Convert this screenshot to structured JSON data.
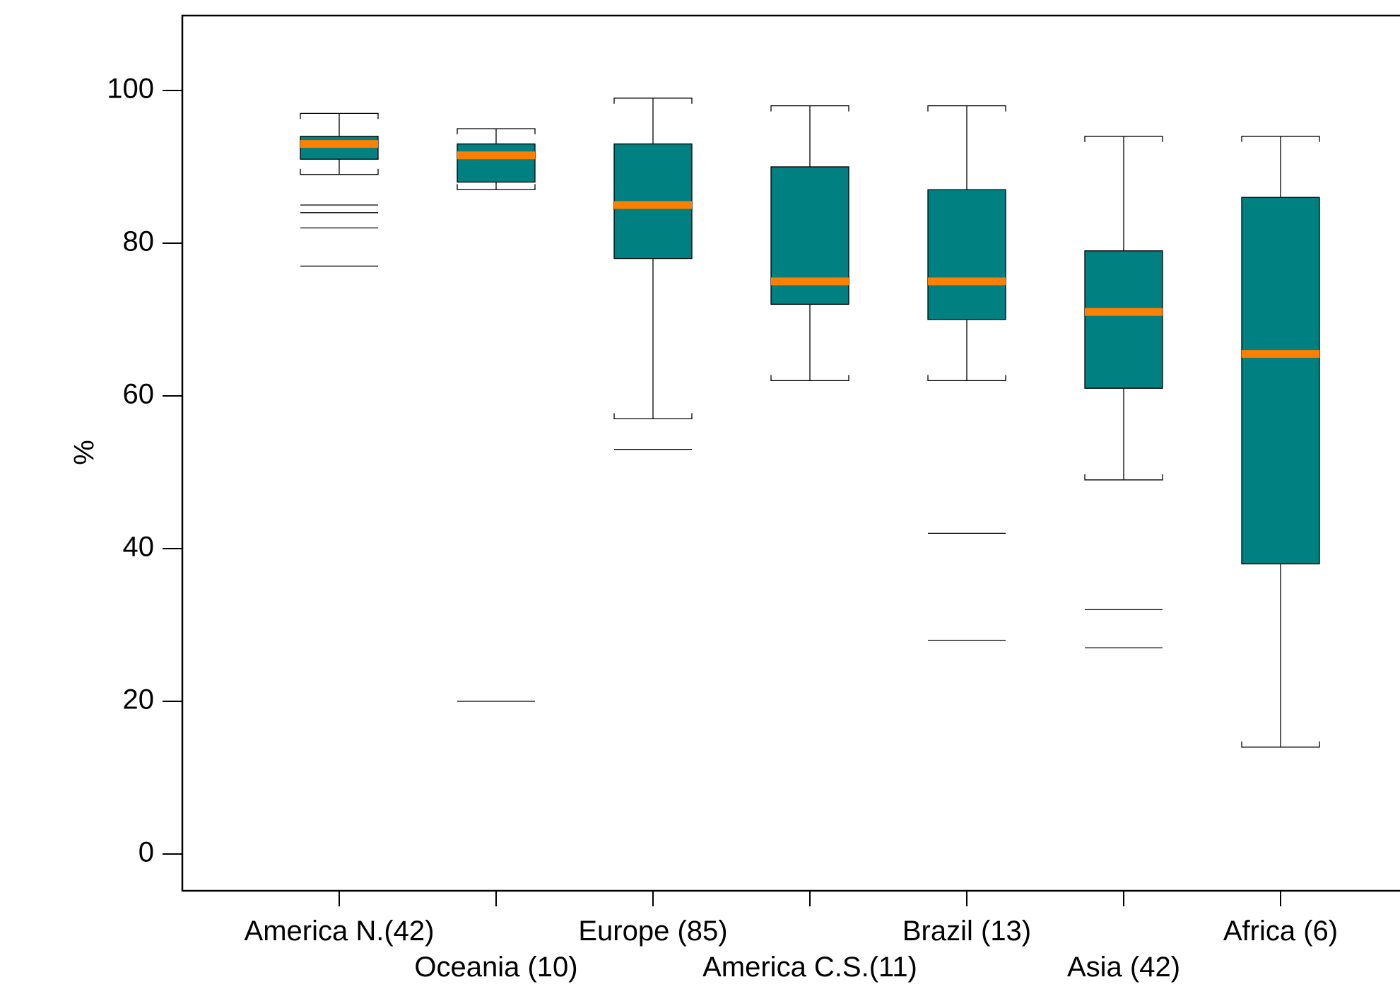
{
  "chart_data": {
    "type": "boxplot",
    "title": "",
    "xlabel": "",
    "ylabel": "%",
    "ylim": [
      -5,
      110
    ],
    "yticks": [
      0,
      20,
      40,
      60,
      80,
      100
    ],
    "grid": false,
    "legend": "none",
    "colors": {
      "box": "#008080",
      "median": "#ff8000",
      "line": "#000000"
    },
    "categories": [
      {
        "label": "America N.(42)",
        "whisker_low": 89,
        "q1": 91,
        "median": 93,
        "q3": 94,
        "whisker_high": 97,
        "outliers": [
          85,
          84,
          82,
          77
        ]
      },
      {
        "label": "Oceania (10)",
        "whisker_low": 87,
        "q1": 88,
        "median": 91.5,
        "q3": 93,
        "whisker_high": 95,
        "outliers": [
          20
        ]
      },
      {
        "label": "Europe (85)",
        "whisker_low": 57,
        "q1": 78,
        "median": 85,
        "q3": 93,
        "whisker_high": 99,
        "outliers": [
          53
        ]
      },
      {
        "label": "America C.S.(11)",
        "whisker_low": 62,
        "q1": 72,
        "median": 75,
        "q3": 90,
        "whisker_high": 98,
        "outliers": []
      },
      {
        "label": "Brazil (13)",
        "whisker_low": 62,
        "q1": 70,
        "median": 75,
        "q3": 87,
        "whisker_high": 98,
        "outliers": [
          42,
          28
        ]
      },
      {
        "label": "Asia (42)",
        "whisker_low": 49,
        "q1": 61,
        "median": 71,
        "q3": 79,
        "whisker_high": 94,
        "outliers": [
          32,
          27
        ]
      },
      {
        "label": "Africa (6)",
        "whisker_low": 14,
        "q1": 38,
        "median": 65.5,
        "q3": 86,
        "whisker_high": 94,
        "outliers": []
      }
    ]
  }
}
